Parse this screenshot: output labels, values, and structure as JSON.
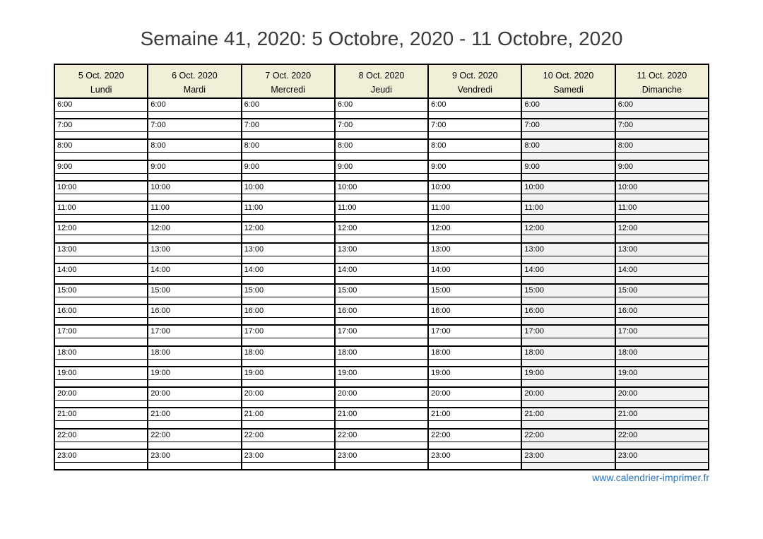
{
  "page": {
    "title": "Semaine 41, 2020: 5 Octobre, 2020 - 11 Octobre, 2020",
    "footer_link": "www.calendrier-imprimer.fr"
  },
  "calendar": {
    "days": [
      {
        "date": "5 Oct. 2020",
        "name": "Lundi",
        "weekend": false
      },
      {
        "date": "6 Oct. 2020",
        "name": "Mardi",
        "weekend": false
      },
      {
        "date": "7 Oct. 2020",
        "name": "Mercredi",
        "weekend": false
      },
      {
        "date": "8 Oct. 2020",
        "name": "Jeudi",
        "weekend": false
      },
      {
        "date": "9 Oct. 2020",
        "name": "Vendredi",
        "weekend": false
      },
      {
        "date": "10 Oct. 2020",
        "name": "Samedi",
        "weekend": true
      },
      {
        "date": "11 Oct. 2020",
        "name": "Dimanche",
        "weekend": true
      }
    ],
    "hours": [
      "6:00",
      "7:00",
      "8:00",
      "9:00",
      "10:00",
      "11:00",
      "12:00",
      "13:00",
      "14:00",
      "15:00",
      "16:00",
      "17:00",
      "18:00",
      "19:00",
      "20:00",
      "21:00",
      "22:00",
      "23:00"
    ]
  },
  "colors": {
    "header_bg": "#f2efd8",
    "weekend_bg": "#f2f2f2",
    "border": "#000000",
    "title_text": "#3a3a3a",
    "link": "#2e75b6"
  }
}
